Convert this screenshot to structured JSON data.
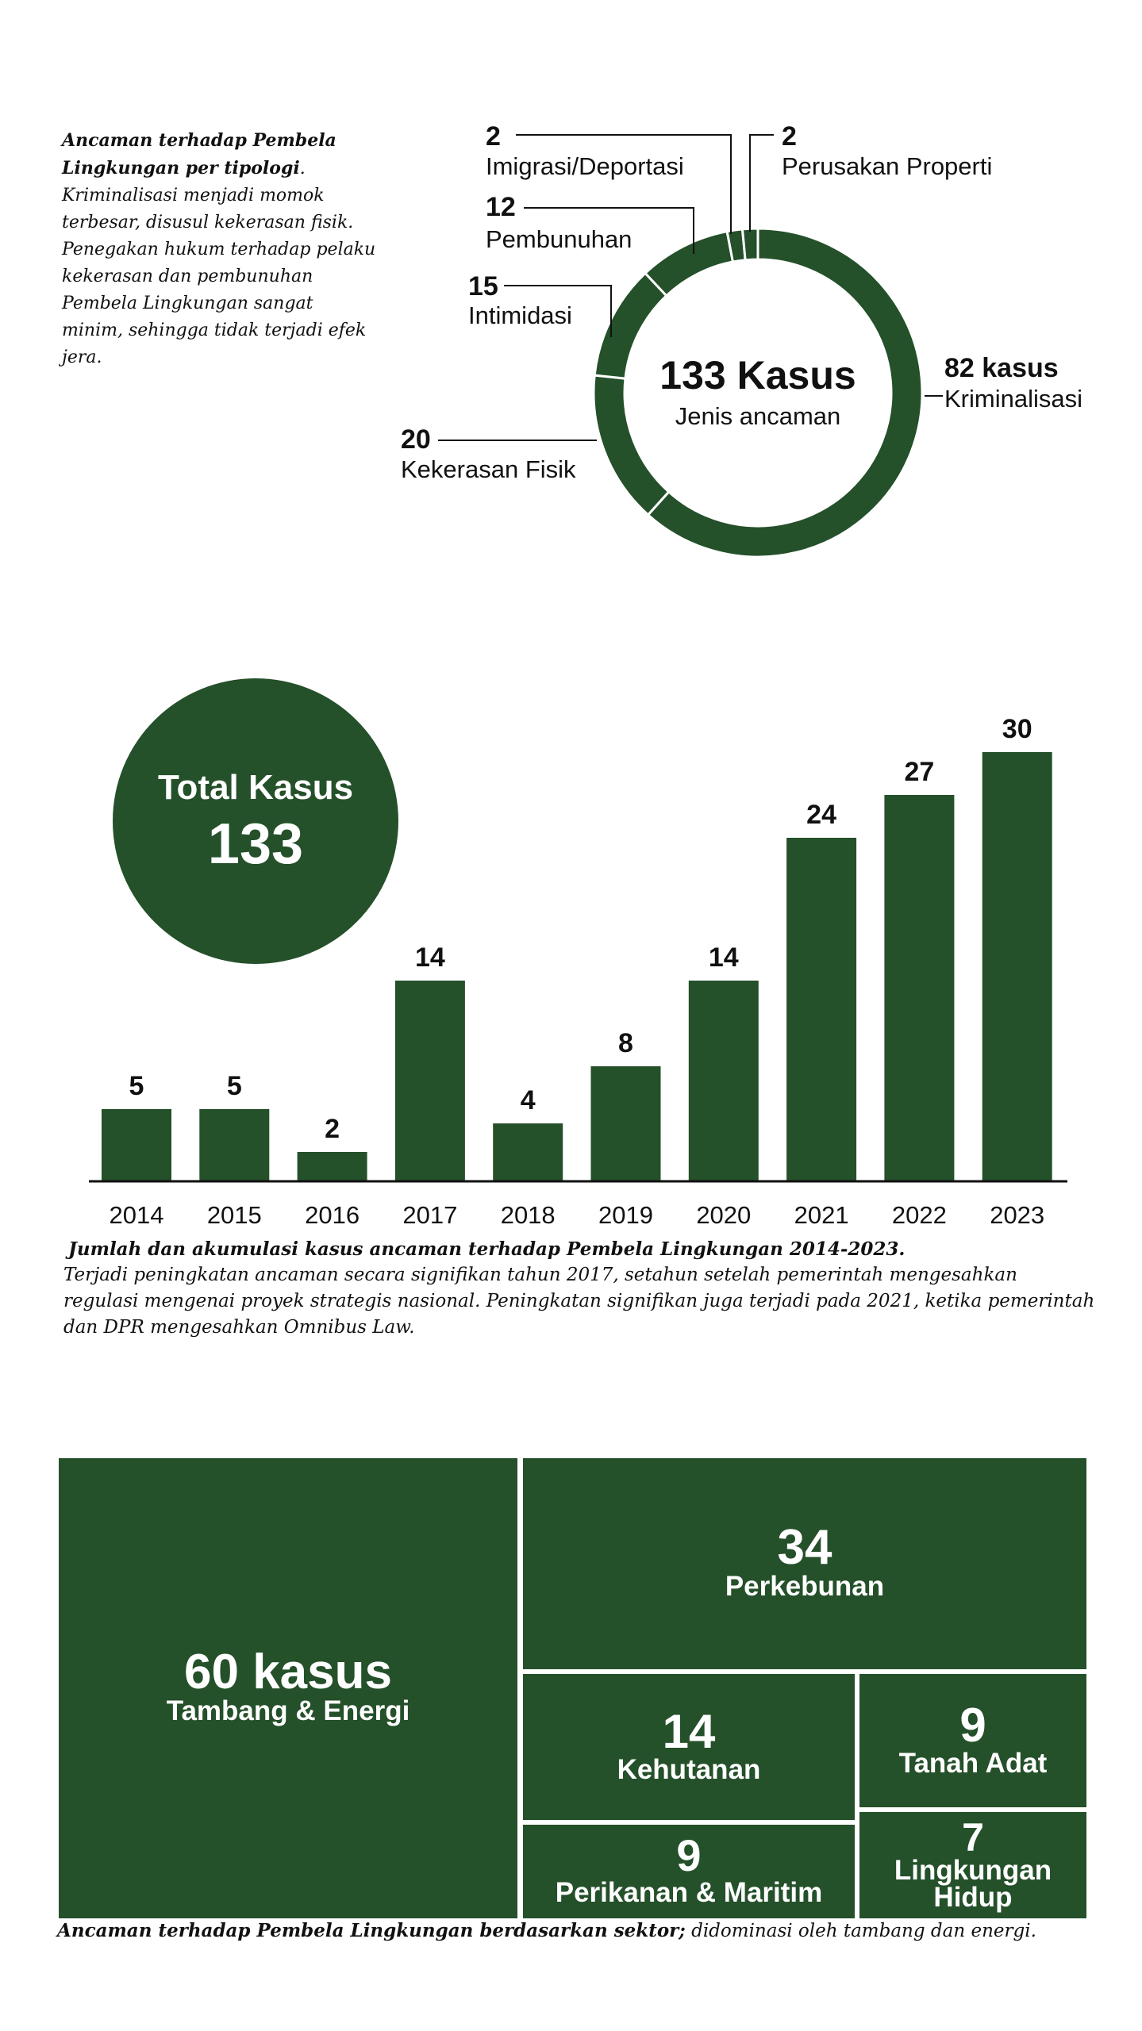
{
  "colors": {
    "green": "#24502a",
    "text": "#111111"
  },
  "donut_section": {
    "intro_lead": "Ancaman terhadap Pembela Lingkungan per tipologi",
    "intro_body": "Kriminalisasi menjadi momok terbesar, disusul kekerasan fisik. Penegakan hukum terhadap pelaku kekerasan dan pembunuhan Pembela Lingkungan sangat minim, sehingga tidak terjadi efek jera."
  },
  "bar_section": {
    "caption_lead": "Jumlah dan akumulasi kasus ancaman terhadap Pembela Lingkungan 2014-2023",
    "caption_body": "Terjadi peningkatan ancaman secara signifikan tahun 2017, setahun setelah pemerintah mengesahkan regulasi mengenai proyek strategis nasional. Peningkatan signifikan juga terjadi pada 2021, ketika pemerintah dan DPR mengesahkan Omnibus Law."
  },
  "treemap_section": {
    "caption_lead": "Ancaman terhadap Pembela Lingkungan berdasarkan sektor;",
    "caption_body": " didominasi oleh tambang dan energi."
  },
  "chart_data": [
    {
      "type": "pie",
      "center_title": "133 Kasus",
      "center_subtitle": "Jenis ancaman",
      "slices": [
        {
          "label": "Kriminalisasi",
          "value": 82,
          "value_text": "82 kasus"
        },
        {
          "label": "Kekerasan Fisik",
          "value": 20,
          "value_text": "20"
        },
        {
          "label": "Intimidasi",
          "value": 15,
          "value_text": "15"
        },
        {
          "label": "Pembunuhan",
          "value": 12,
          "value_text": "12"
        },
        {
          "label": "Imigrasi/Deportasi",
          "value": 2,
          "value_text": "2"
        },
        {
          "label": "Perusakan Properti",
          "value": 2,
          "value_text": "2"
        }
      ]
    },
    {
      "type": "bar",
      "categories": [
        "2014",
        "2015",
        "2016",
        "2017",
        "2018",
        "2019",
        "2020",
        "2021",
        "2022",
        "2023"
      ],
      "values": [
        5,
        5,
        2,
        14,
        4,
        8,
        14,
        24,
        27,
        30
      ],
      "total_label": "Total Kasus",
      "total_value": "133",
      "ylim": [
        0,
        30
      ]
    },
    {
      "type": "treemap",
      "items": [
        {
          "value": "60 kasus",
          "label": "Tambang & Energi",
          "num": 60
        },
        {
          "value": "34",
          "label": "Perkebunan",
          "num": 34
        },
        {
          "value": "14",
          "label": "Kehutanan",
          "num": 14
        },
        {
          "value": "9",
          "label": "Tanah Adat",
          "num": 9
        },
        {
          "value": "9",
          "label": "Perikanan  & Maritim",
          "num": 9
        },
        {
          "value": "7",
          "label": "Lingkungan Hidup",
          "num": 7
        }
      ]
    }
  ]
}
